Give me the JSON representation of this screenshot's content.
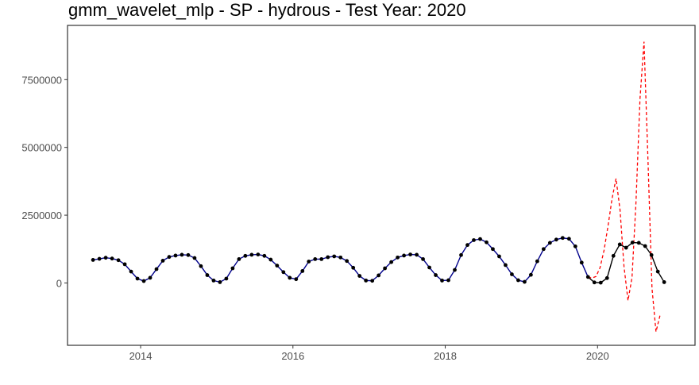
{
  "chart_data": {
    "type": "line",
    "title": "gmm_wavelet_mlp - SP - hydrous - Test Year: 2020",
    "xlabel": "",
    "ylabel": "",
    "xlim": [
      2013.04,
      2021.28
    ],
    "ylim": [
      -2300000,
      9500000
    ],
    "x_ticks": [
      2014,
      2016,
      2018,
      2020
    ],
    "x_tick_labels": [
      "2014",
      "2016",
      "2018",
      "2020"
    ],
    "y_ticks": [
      0,
      2500000,
      5000000,
      7500000
    ],
    "y_tick_labels": [
      "0",
      "2500000",
      "5000000",
      "7500000"
    ],
    "grid": false,
    "colors": {
      "observed": "#000000",
      "fitted": "#00008b",
      "forecast": "#ff0000",
      "border": "#333333"
    },
    "x_start": 2013.375,
    "x_step": 0.08333333,
    "series": [
      {
        "role": "observed",
        "style": "solid-with-points",
        "values": [
          850000,
          890000,
          930000,
          900000,
          840000,
          690000,
          420000,
          160000,
          70000,
          190000,
          510000,
          820000,
          960000,
          1010000,
          1040000,
          1030000,
          920000,
          620000,
          290000,
          90000,
          30000,
          160000,
          540000,
          880000,
          1000000,
          1040000,
          1050000,
          1000000,
          860000,
          640000,
          400000,
          190000,
          140000,
          440000,
          790000,
          880000,
          880000,
          950000,
          980000,
          940000,
          810000,
          560000,
          260000,
          90000,
          80000,
          280000,
          540000,
          770000,
          940000,
          1010000,
          1050000,
          1040000,
          880000,
          570000,
          290000,
          90000,
          100000,
          480000,
          1030000,
          1400000,
          1580000,
          1620000,
          1500000,
          1250000,
          980000,
          660000,
          320000,
          100000,
          40000,
          300000,
          800000,
          1250000,
          1480000,
          1600000,
          1660000,
          1630000,
          1350000,
          750000,
          220000,
          20000,
          10000,
          180000,
          1000000,
          1420000,
          1300000,
          1490000,
          1480000,
          1360000,
          1030000,
          420000,
          30000
        ]
      },
      {
        "role": "forecast",
        "style": "dashed",
        "x_start": 2019.875,
        "values": [
          220000,
          180000,
          240000,
          560000,
          1200000,
          2100000,
          3100000,
          3850000,
          2700000,
          600000,
          -650000,
          200000,
          3000000,
          6800000,
          8900000,
          4500000,
          -200000,
          -1800000,
          -1200000
        ]
      }
    ]
  }
}
